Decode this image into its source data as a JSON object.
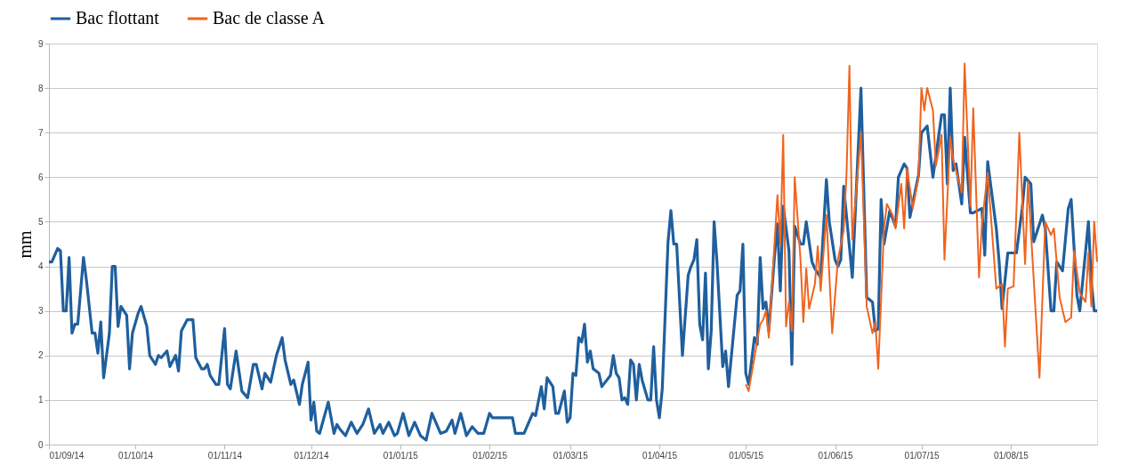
{
  "chart_data": {
    "type": "line",
    "ylabel": "mm",
    "legend": "top",
    "grid": "y",
    "marker": "none",
    "line_style": "solid",
    "xlim": [
      "2014-09-01",
      "2015-08-31"
    ],
    "xticks": [
      {
        "value": "2014-09-01",
        "label": "01/09/14"
      },
      {
        "value": "2014-10-01",
        "label": "01/10/14"
      },
      {
        "value": "2014-11-01",
        "label": "01/11/14"
      },
      {
        "value": "2014-12-01",
        "label": "01/12/14"
      },
      {
        "value": "2015-01-01",
        "label": "01/01/15"
      },
      {
        "value": "2015-02-01",
        "label": "01/02/15"
      },
      {
        "value": "2015-03-01",
        "label": "01/03/15"
      },
      {
        "value": "2015-04-01",
        "label": "01/04/15"
      },
      {
        "value": "2015-05-01",
        "label": "01/05/15"
      },
      {
        "value": "2015-06-01",
        "label": "01/06/15"
      },
      {
        "value": "2015-07-01",
        "label": "01/07/15"
      },
      {
        "value": "2015-08-01",
        "label": "01/08/15"
      }
    ],
    "ylim": [
      0,
      9
    ],
    "yticks": [
      0,
      1,
      2,
      3,
      4,
      5,
      6,
      7,
      8,
      9
    ],
    "series": [
      {
        "name": "Bac flottant",
        "color": "#1f5f9e",
        "x": [
          "2014-09-01",
          "2014-09-02",
          "2014-09-04",
          "2014-09-05",
          "2014-09-06",
          "2014-09-07",
          "2014-09-08",
          "2014-09-09",
          "2014-09-10",
          "2014-09-11",
          "2014-09-13",
          "2014-09-14",
          "2014-09-16",
          "2014-09-17",
          "2014-09-18",
          "2014-09-19",
          "2014-09-20",
          "2014-09-22",
          "2014-09-23",
          "2014-09-24",
          "2014-09-25",
          "2014-09-26",
          "2014-09-28",
          "2014-09-29",
          "2014-09-30",
          "2014-10-02",
          "2014-10-03",
          "2014-10-05",
          "2014-10-06",
          "2014-10-08",
          "2014-10-09",
          "2014-10-10",
          "2014-10-12",
          "2014-10-13",
          "2014-10-15",
          "2014-10-16",
          "2014-10-17",
          "2014-10-19",
          "2014-10-21",
          "2014-10-22",
          "2014-10-24",
          "2014-10-25",
          "2014-10-26",
          "2014-10-27",
          "2014-10-29",
          "2014-10-30",
          "2014-11-01",
          "2014-11-02",
          "2014-11-03",
          "2014-11-05",
          "2014-11-07",
          "2014-11-09",
          "2014-11-11",
          "2014-11-12",
          "2014-11-14",
          "2014-11-15",
          "2014-11-17",
          "2014-11-19",
          "2014-11-21",
          "2014-11-22",
          "2014-11-24",
          "2014-11-25",
          "2014-11-27",
          "2014-11-28",
          "2014-11-30",
          "2014-12-01",
          "2014-12-02",
          "2014-12-03",
          "2014-12-04",
          "2014-12-07",
          "2014-12-09",
          "2014-12-10",
          "2014-12-11",
          "2014-12-13",
          "2014-12-15",
          "2014-12-17",
          "2014-12-19",
          "2014-12-21",
          "2014-12-23",
          "2014-12-25",
          "2014-12-26",
          "2014-12-28",
          "2014-12-30",
          "2014-12-31",
          "2015-01-02",
          "2015-01-04",
          "2015-01-06",
          "2015-01-08",
          "2015-01-10",
          "2015-01-12",
          "2015-01-15",
          "2015-01-17",
          "2015-01-19",
          "2015-01-20",
          "2015-01-22",
          "2015-01-24",
          "2015-01-26",
          "2015-01-28",
          "2015-01-30",
          "2015-02-01",
          "2015-02-02",
          "2015-02-09",
          "2015-02-10",
          "2015-02-13",
          "2015-02-16",
          "2015-02-17",
          "2015-02-19",
          "2015-02-20",
          "2015-02-21",
          "2015-02-23",
          "2015-02-24",
          "2015-02-25",
          "2015-02-27",
          "2015-02-28",
          "2015-03-01",
          "2015-03-02",
          "2015-03-03",
          "2015-03-04",
          "2015-03-05",
          "2015-03-06",
          "2015-03-07",
          "2015-03-08",
          "2015-03-09",
          "2015-03-11",
          "2015-03-12",
          "2015-03-15",
          "2015-03-16",
          "2015-03-17",
          "2015-03-18",
          "2015-03-19",
          "2015-03-20",
          "2015-03-21",
          "2015-03-22",
          "2015-03-23",
          "2015-03-24",
          "2015-03-25",
          "2015-03-26",
          "2015-03-28",
          "2015-03-29",
          "2015-03-30",
          "2015-03-31",
          "2015-04-01",
          "2015-04-02",
          "2015-04-04",
          "2015-04-05",
          "2015-04-06",
          "2015-04-07",
          "2015-04-09",
          "2015-04-11",
          "2015-04-12",
          "2015-04-13",
          "2015-04-14",
          "2015-04-15",
          "2015-04-16",
          "2015-04-17",
          "2015-04-18",
          "2015-04-19",
          "2015-04-20",
          "2015-04-21",
          "2015-04-23",
          "2015-04-24",
          "2015-04-25",
          "2015-04-28",
          "2015-04-29",
          "2015-04-30",
          "2015-05-01",
          "2015-05-02",
          "2015-05-04",
          "2015-05-05",
          "2015-05-06",
          "2015-05-07",
          "2015-05-08",
          "2015-05-09",
          "2015-05-11",
          "2015-05-12",
          "2015-05-13",
          "2015-05-14",
          "2015-05-16",
          "2015-05-17",
          "2015-05-18",
          "2015-05-20",
          "2015-05-21",
          "2015-05-22",
          "2015-05-24",
          "2015-05-25",
          "2015-05-27",
          "2015-05-29",
          "2015-05-30",
          "2015-06-01",
          "2015-06-02",
          "2015-06-03",
          "2015-06-04",
          "2015-06-07",
          "2015-06-10",
          "2015-06-12",
          "2015-06-13",
          "2015-06-14",
          "2015-06-15",
          "2015-06-16",
          "2015-06-17",
          "2015-06-18",
          "2015-06-20",
          "2015-06-22",
          "2015-06-23",
          "2015-06-25",
          "2015-06-26",
          "2015-06-27",
          "2015-06-30",
          "2015-07-01",
          "2015-07-03",
          "2015-07-05",
          "2015-07-08",
          "2015-07-09",
          "2015-07-10",
          "2015-07-11",
          "2015-07-12",
          "2015-07-13",
          "2015-07-15",
          "2015-07-16",
          "2015-07-18",
          "2015-07-19",
          "2015-07-22",
          "2015-07-23",
          "2015-07-24",
          "2015-07-27",
          "2015-07-28",
          "2015-07-29",
          "2015-07-31",
          "2015-08-01",
          "2015-08-03",
          "2015-08-05",
          "2015-08-06",
          "2015-08-08",
          "2015-08-09",
          "2015-08-12",
          "2015-08-13",
          "2015-08-15",
          "2015-08-16",
          "2015-08-17",
          "2015-08-19",
          "2015-08-21",
          "2015-08-22",
          "2015-08-24",
          "2015-08-25",
          "2015-08-28",
          "2015-08-29",
          "2015-08-30",
          "2015-08-31"
        ],
        "values": [
          4.1,
          4.1,
          4.4,
          4.35,
          3.0,
          3.0,
          4.2,
          2.5,
          2.7,
          2.7,
          4.2,
          3.7,
          2.5,
          2.5,
          2.05,
          2.75,
          1.5,
          2.5,
          4.0,
          4.0,
          2.65,
          3.1,
          2.9,
          1.7,
          2.5,
          2.95,
          3.1,
          2.65,
          2.0,
          1.8,
          2.0,
          1.95,
          2.1,
          1.75,
          2.0,
          1.65,
          2.55,
          2.8,
          2.8,
          1.95,
          1.7,
          1.7,
          1.8,
          1.55,
          1.35,
          1.35,
          2.6,
          1.35,
          1.25,
          2.1,
          1.2,
          1.05,
          1.8,
          1.8,
          1.25,
          1.6,
          1.4,
          2.0,
          2.4,
          1.9,
          1.35,
          1.45,
          0.9,
          1.35,
          1.85,
          0.55,
          0.95,
          0.3,
          0.25,
          0.95,
          0.25,
          0.45,
          0.35,
          0.2,
          0.5,
          0.25,
          0.45,
          0.8,
          0.25,
          0.45,
          0.25,
          0.5,
          0.2,
          0.25,
          0.7,
          0.2,
          0.5,
          0.2,
          0.1,
          0.7,
          0.25,
          0.3,
          0.55,
          0.25,
          0.7,
          0.2,
          0.4,
          0.25,
          0.25,
          0.7,
          0.6,
          0.6,
          0.25,
          0.25,
          0.7,
          0.65,
          1.3,
          0.8,
          1.5,
          1.3,
          0.7,
          0.7,
          1.2,
          0.5,
          0.6,
          1.6,
          1.55,
          2.4,
          2.3,
          2.7,
          1.85,
          2.1,
          1.7,
          1.6,
          1.3,
          1.55,
          2.0,
          1.6,
          1.5,
          1.0,
          1.05,
          0.9,
          1.9,
          1.8,
          1.0,
          1.8,
          1.45,
          1.0,
          1.0,
          2.2,
          1.0,
          0.6,
          1.25,
          4.55,
          5.25,
          4.5,
          4.5,
          2.0,
          3.8,
          4.0,
          4.15,
          4.6,
          2.7,
          2.35,
          3.85,
          1.7,
          2.55,
          5.0,
          4.1,
          1.75,
          2.1,
          1.3,
          3.35,
          3.45,
          4.5,
          1.6,
          1.35,
          2.4,
          2.25,
          4.2,
          3.05,
          3.2,
          2.55,
          4.25,
          4.95,
          3.45,
          5.35,
          4.35,
          1.8,
          4.9,
          4.5,
          4.5,
          5.0,
          4.1,
          3.95,
          3.75,
          5.95,
          5.0,
          4.15,
          4.0,
          4.15,
          5.8,
          3.75,
          8.0,
          3.3,
          3.25,
          3.2,
          2.55,
          2.6,
          5.5,
          4.5,
          5.25,
          4.9,
          6.0,
          6.3,
          6.2,
          5.1,
          6.05,
          7.0,
          7.15,
          6.0,
          7.4,
          7.4,
          5.85,
          8.0,
          6.15,
          6.3,
          5.4,
          6.9,
          5.2,
          5.2,
          5.3,
          4.25,
          6.35,
          4.85,
          4.1,
          3.05,
          4.3,
          4.3,
          4.3,
          5.3,
          6.0,
          5.85,
          4.55,
          5.15,
          4.85,
          3.0,
          3.0,
          4.1,
          3.9,
          5.3,
          5.5,
          3.35,
          3.0,
          5.0,
          3.65,
          3.0,
          3.0
        ]
      },
      {
        "name": "Bac de classe A",
        "color": "#f0641e",
        "x": [
          "2015-05-01",
          "2015-05-02",
          "2015-05-04",
          "2015-05-05",
          "2015-05-06",
          "2015-05-07",
          "2015-05-08",
          "2015-05-09",
          "2015-05-11",
          "2015-05-12",
          "2015-05-13",
          "2015-05-14",
          "2015-05-15",
          "2015-05-16",
          "2015-05-17",
          "2015-05-18",
          "2015-05-20",
          "2015-05-21",
          "2015-05-22",
          "2015-05-23",
          "2015-05-25",
          "2015-05-26",
          "2015-05-27",
          "2015-05-29",
          "2015-05-31",
          "2015-06-02",
          "2015-06-04",
          "2015-06-05",
          "2015-06-06",
          "2015-06-07",
          "2015-06-10",
          "2015-06-12",
          "2015-06-14",
          "2015-06-15",
          "2015-06-16",
          "2015-06-18",
          "2015-06-19",
          "2015-06-21",
          "2015-06-22",
          "2015-06-24",
          "2015-06-25",
          "2015-06-26",
          "2015-06-28",
          "2015-06-30",
          "2015-07-01",
          "2015-07-02",
          "2015-07-03",
          "2015-07-05",
          "2015-07-06",
          "2015-07-08",
          "2015-07-09",
          "2015-07-11",
          "2015-07-12",
          "2015-07-15",
          "2015-07-16",
          "2015-07-18",
          "2015-07-19",
          "2015-07-21",
          "2015-07-22",
          "2015-07-24",
          "2015-07-27",
          "2015-07-29",
          "2015-07-30",
          "2015-07-31",
          "2015-08-02",
          "2015-08-04",
          "2015-08-06",
          "2015-08-07",
          "2015-08-11",
          "2015-08-13",
          "2015-08-15",
          "2015-08-16",
          "2015-08-18",
          "2015-08-20",
          "2015-08-22",
          "2015-08-23",
          "2015-08-25",
          "2015-08-27",
          "2015-08-28",
          "2015-08-29",
          "2015-08-30",
          "2015-08-31"
        ],
        "values": [
          1.35,
          1.2,
          1.95,
          2.35,
          2.7,
          2.8,
          3.0,
          2.4,
          4.55,
          5.6,
          4.5,
          6.95,
          2.65,
          3.2,
          2.55,
          6.0,
          4.15,
          2.75,
          3.95,
          3.05,
          3.6,
          4.45,
          3.45,
          5.15,
          2.5,
          4.15,
          4.8,
          6.1,
          8.5,
          4.6,
          7.0,
          3.1,
          2.5,
          2.75,
          1.7,
          4.85,
          5.4,
          5.15,
          4.85,
          5.85,
          4.85,
          6.2,
          5.3,
          6.0,
          8.0,
          7.5,
          8.0,
          7.5,
          6.25,
          6.95,
          4.15,
          6.9,
          6.4,
          5.65,
          8.55,
          5.35,
          7.55,
          3.75,
          4.95,
          6.1,
          3.5,
          3.6,
          2.2,
          3.5,
          3.55,
          7.0,
          4.05,
          5.9,
          1.5,
          5.0,
          4.7,
          4.85,
          3.3,
          2.75,
          2.85,
          4.35,
          3.4,
          3.2,
          4.3,
          3.1,
          5.0,
          4.1
        ]
      }
    ]
  }
}
